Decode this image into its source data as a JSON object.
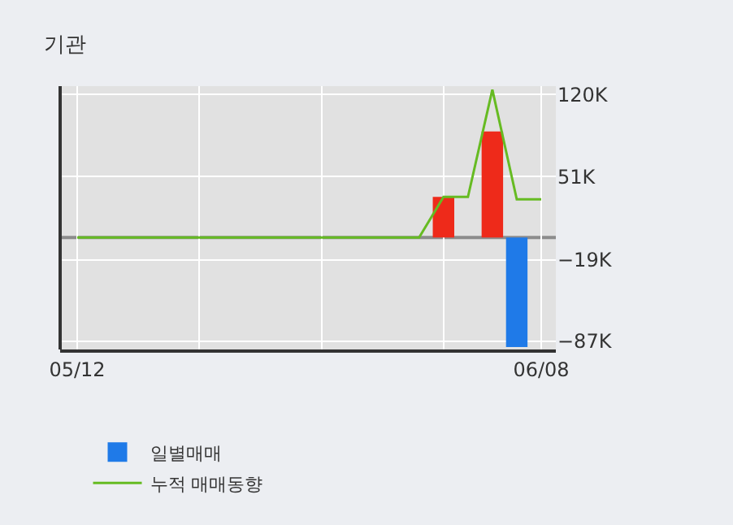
{
  "chart_data": {
    "type": "bar",
    "title": "기관",
    "categories": [
      "05/12",
      null,
      null,
      null,
      null,
      null,
      null,
      null,
      null,
      null,
      null,
      null,
      null,
      null,
      null,
      null,
      null,
      null,
      null,
      "06/08"
    ],
    "series": [
      {
        "name": "일별매매",
        "colors": [
          "#1f7ae8",
          "#1f7ae8",
          "#1f7ae8",
          "#1f7ae8",
          "#1f7ae8",
          "#1f7ae8",
          "#1f7ae8",
          "#1f7ae8",
          "#1f7ae8",
          "#1f7ae8",
          "#1f7ae8",
          "#1f7ae8",
          "#1f7ae8",
          "#1f7ae8",
          "#1f7ae8",
          "#ee2a1a",
          "#1f7ae8",
          "#ee2a1a",
          "#1f7ae8",
          "#1f7ae8"
        ],
        "values": [
          0,
          0,
          0,
          0,
          0,
          0,
          0,
          0,
          0,
          0,
          0,
          0,
          0,
          0,
          0,
          34000,
          0,
          89000,
          -92000,
          0
        ]
      },
      {
        "name": "누적 매매동향",
        "type": "line",
        "color": "#66bb22",
        "values": [
          0,
          0,
          0,
          0,
          0,
          0,
          0,
          0,
          0,
          0,
          0,
          0,
          0,
          0,
          0,
          34000,
          34000,
          124000,
          32000,
          32000
        ]
      }
    ],
    "ylim": [
      -94000,
      127000
    ],
    "yticks": [
      {
        "value": 120000,
        "label": "120K"
      },
      {
        "value": 51000,
        "label": "51K"
      },
      {
        "value": -19000,
        "label": "−19K"
      },
      {
        "value": -87000,
        "label": "−87K"
      }
    ],
    "ref_lines": [
      {
        "axis": "y",
        "value": 0,
        "color": "#8c8c8c"
      }
    ],
    "grid": true,
    "legend": "bottom"
  }
}
